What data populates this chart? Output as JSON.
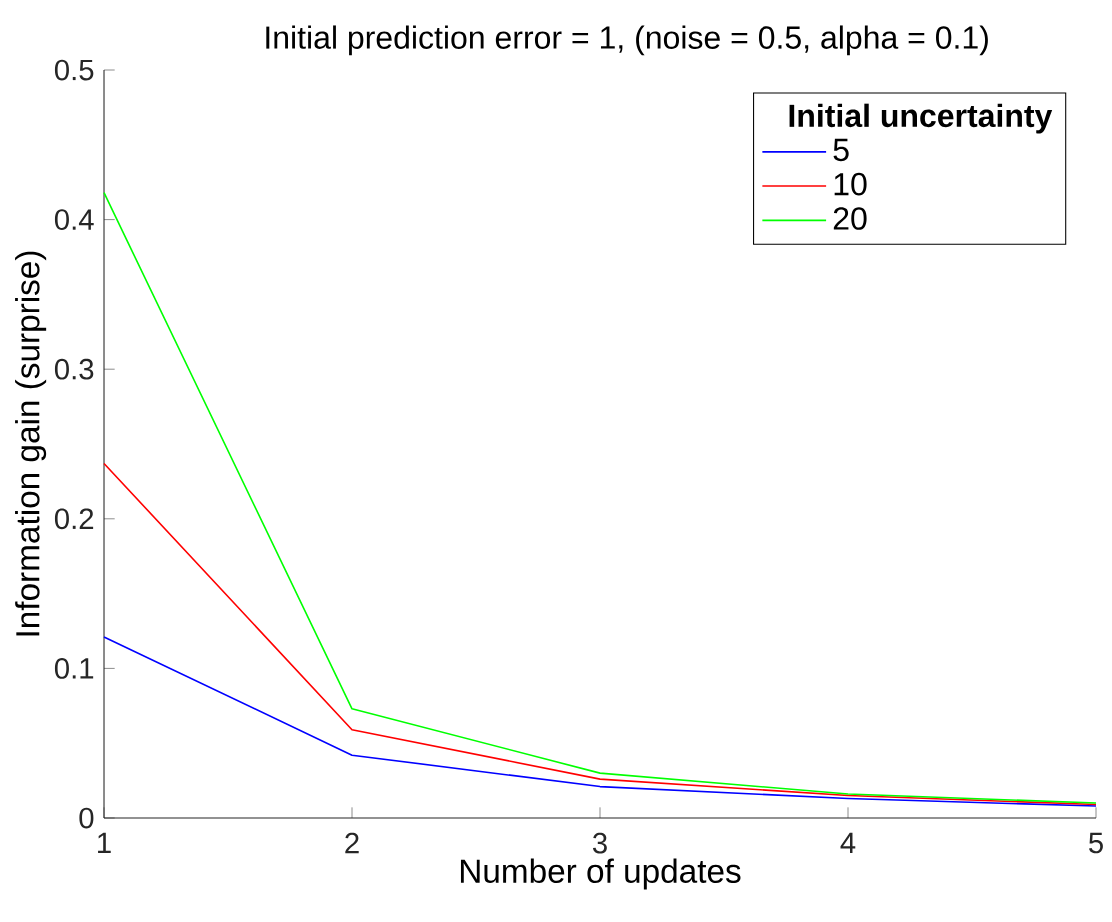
{
  "chart_data": {
    "type": "line",
    "title": "Initial prediction error = 1, (noise = 0.5, alpha = 0.1)",
    "xlabel": "Number of updates",
    "ylabel": "Information gain (surprise)",
    "legend_title": "Initial uncertainty",
    "x": [
      1,
      2,
      3,
      4,
      5
    ],
    "series": [
      {
        "name": "5",
        "color": "#0000ff",
        "values": [
          0.121,
          0.042,
          0.021,
          0.013,
          0.008
        ]
      },
      {
        "name": "10",
        "color": "#ff0000",
        "values": [
          0.237,
          0.059,
          0.026,
          0.015,
          0.009
        ]
      },
      {
        "name": "20",
        "color": "#00ff00",
        "values": [
          0.418,
          0.073,
          0.03,
          0.016,
          0.01
        ]
      }
    ],
    "xlim": [
      1,
      5
    ],
    "ylim": [
      0,
      0.5
    ],
    "xticks": [
      1,
      2,
      3,
      4,
      5
    ],
    "yticks": [
      0,
      0.1,
      0.2,
      0.3,
      0.4,
      0.5
    ],
    "legend": "top right",
    "marker": "none",
    "line_style": "solid"
  }
}
